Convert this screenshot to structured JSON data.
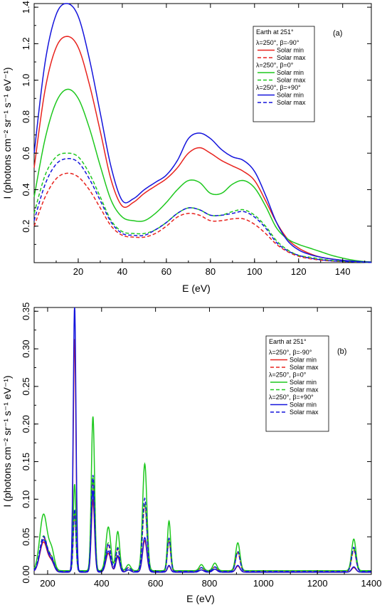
{
  "chart_data": [
    {
      "type": "line",
      "panel_label": "(a)",
      "title": "",
      "xlabel": "E (eV)",
      "ylabel": "I (photons cm⁻² sr⁻¹ s⁻¹ eV⁻¹)",
      "xlim": [
        0,
        153
      ],
      "ylim": [
        0,
        1.42
      ],
      "xticks": [
        20,
        40,
        60,
        80,
        100,
        120,
        140
      ],
      "yticks": [
        0.2,
        0.4,
        0.6,
        0.8,
        1.0,
        1.2,
        1.4
      ],
      "ytick_labels": [
        "0.2",
        "0.4",
        "0.6",
        "0.8",
        "1.0",
        "1.2",
        "1.4"
      ],
      "legend": {
        "position": "top-right",
        "header": "Earth at 251°",
        "groups": [
          "λ=250°, β=-90°",
          "λ=250°, β=0°",
          "λ=250°, β=+90°"
        ],
        "entries": [
          "Solar min",
          "Solar max"
        ]
      },
      "series": [
        {
          "name": "Solar min",
          "group": "λ=250°, β=-90°",
          "color": "#e8231e",
          "dash": "solid",
          "x": [
            0,
            5,
            10,
            15,
            20,
            25,
            30,
            35,
            40,
            45,
            50,
            55,
            60,
            65,
            70,
            75,
            80,
            85,
            90,
            95,
            100,
            105,
            110,
            115,
            120,
            125,
            130,
            135,
            140,
            145,
            150,
            153
          ],
          "y": [
            0.52,
            0.95,
            1.18,
            1.24,
            1.18,
            0.98,
            0.72,
            0.45,
            0.31,
            0.33,
            0.38,
            0.42,
            0.46,
            0.52,
            0.6,
            0.63,
            0.6,
            0.56,
            0.53,
            0.5,
            0.45,
            0.34,
            0.22,
            0.13,
            0.08,
            0.05,
            0.03,
            0.02,
            0.013,
            0.008,
            0.004,
            0.003
          ]
        },
        {
          "name": "Solar max",
          "group": "λ=250°, β=-90°",
          "color": "#e8231e",
          "dash": "dashed",
          "x": [
            0,
            5,
            10,
            15,
            20,
            25,
            30,
            35,
            40,
            45,
            50,
            55,
            60,
            65,
            70,
            75,
            80,
            85,
            90,
            95,
            100,
            105,
            110,
            115,
            120,
            125,
            130,
            135,
            140,
            145,
            150,
            153
          ],
          "y": [
            0.2,
            0.36,
            0.46,
            0.49,
            0.47,
            0.4,
            0.3,
            0.2,
            0.15,
            0.14,
            0.14,
            0.16,
            0.2,
            0.25,
            0.27,
            0.26,
            0.23,
            0.23,
            0.24,
            0.24,
            0.21,
            0.16,
            0.1,
            0.06,
            0.035,
            0.022,
            0.014,
            0.009,
            0.006,
            0.004,
            0.002,
            0.001
          ]
        },
        {
          "name": "Solar min",
          "group": "λ=250°, β=0°",
          "color": "#1ec81e",
          "dash": "solid",
          "x": [
            0,
            5,
            10,
            15,
            20,
            25,
            30,
            35,
            40,
            45,
            50,
            55,
            60,
            65,
            70,
            75,
            80,
            85,
            90,
            95,
            100,
            105,
            110,
            115,
            120,
            125,
            130,
            135,
            140,
            145,
            150,
            153
          ],
          "y": [
            0.36,
            0.68,
            0.88,
            0.95,
            0.9,
            0.74,
            0.53,
            0.34,
            0.25,
            0.23,
            0.23,
            0.27,
            0.33,
            0.4,
            0.45,
            0.44,
            0.38,
            0.38,
            0.43,
            0.45,
            0.41,
            0.31,
            0.19,
            0.13,
            0.1,
            0.08,
            0.06,
            0.04,
            0.025,
            0.013,
            0.006,
            0.004
          ]
        },
        {
          "name": "Solar max",
          "group": "λ=250°, β=0°",
          "color": "#1ec81e",
          "dash": "dashed",
          "x": [
            0,
            5,
            10,
            15,
            20,
            25,
            30,
            35,
            40,
            45,
            50,
            55,
            60,
            65,
            70,
            75,
            80,
            85,
            90,
            95,
            100,
            105,
            110,
            115,
            120,
            125,
            130,
            135,
            140,
            145,
            150,
            153
          ],
          "y": [
            0.27,
            0.48,
            0.58,
            0.6,
            0.58,
            0.49,
            0.36,
            0.23,
            0.17,
            0.16,
            0.16,
            0.18,
            0.22,
            0.27,
            0.3,
            0.29,
            0.26,
            0.26,
            0.28,
            0.29,
            0.26,
            0.2,
            0.12,
            0.07,
            0.04,
            0.03,
            0.02,
            0.012,
            0.008,
            0.005,
            0.002,
            0.001
          ]
        },
        {
          "name": "Solar min",
          "group": "λ=250°, β=+90°",
          "color": "#1414dc",
          "dash": "solid",
          "x": [
            0,
            5,
            10,
            15,
            20,
            25,
            30,
            35,
            40,
            45,
            50,
            55,
            60,
            65,
            70,
            75,
            80,
            85,
            90,
            95,
            100,
            105,
            110,
            115,
            120,
            125,
            130,
            135,
            140,
            145,
            150,
            153
          ],
          "y": [
            0.6,
            1.1,
            1.36,
            1.42,
            1.35,
            1.12,
            0.82,
            0.52,
            0.34,
            0.35,
            0.4,
            0.44,
            0.48,
            0.56,
            0.68,
            0.71,
            0.68,
            0.62,
            0.58,
            0.56,
            0.5,
            0.37,
            0.22,
            0.12,
            0.07,
            0.045,
            0.03,
            0.02,
            0.013,
            0.008,
            0.004,
            0.003
          ]
        },
        {
          "name": "Solar max",
          "group": "λ=250°, β=+90°",
          "color": "#1414dc",
          "dash": "dashed",
          "x": [
            0,
            5,
            10,
            15,
            20,
            25,
            30,
            35,
            40,
            45,
            50,
            55,
            60,
            65,
            70,
            75,
            80,
            85,
            90,
            95,
            100,
            105,
            110,
            115,
            120,
            125,
            130,
            135,
            140,
            145,
            150,
            153
          ],
          "y": [
            0.23,
            0.43,
            0.54,
            0.57,
            0.55,
            0.46,
            0.34,
            0.22,
            0.16,
            0.15,
            0.15,
            0.18,
            0.22,
            0.27,
            0.3,
            0.29,
            0.26,
            0.26,
            0.27,
            0.28,
            0.25,
            0.19,
            0.11,
            0.065,
            0.04,
            0.025,
            0.016,
            0.01,
            0.007,
            0.004,
            0.002,
            0.001
          ]
        }
      ]
    },
    {
      "type": "line",
      "panel_label": "(b)",
      "title": "",
      "xlabel": "E (eV)",
      "ylabel": "I (photons cm⁻² sr⁻¹ s⁻¹ eV⁻¹)",
      "xlim": [
        150,
        1400
      ],
      "ylim": [
        0,
        0.355
      ],
      "xticks": [
        200,
        400,
        600,
        800,
        1000,
        1200,
        1400
      ],
      "yticks": [
        0,
        0.05,
        0.1,
        0.15,
        0.2,
        0.25,
        0.3,
        0.35
      ],
      "ytick_labels": [
        "0.00",
        "0.05",
        "0.10",
        "0.15",
        "0.20",
        "0.25",
        "0.30",
        "0.35"
      ],
      "legend": {
        "position": "top-right",
        "header": "Earth at 251°",
        "groups": [
          "λ=250°, β=-90°",
          "λ=250°, β=0°",
          "λ=250°, β=+90°"
        ],
        "entries": [
          "Solar min",
          "Solar max"
        ]
      },
      "peaks_x": [
        185,
        215,
        300,
        368,
        425,
        460,
        500,
        560,
        650,
        770,
        820,
        905,
        1335
      ],
      "peak_width": [
        14,
        10,
        5,
        6,
        9,
        7,
        8,
        8,
        6,
        8,
        8,
        8,
        8
      ],
      "series": [
        {
          "name": "Solar min",
          "group": "λ=250°, β=-90°",
          "color": "#e8231e",
          "dash": "solid",
          "baseline": 0.003,
          "peaks": [
            0.04,
            0.012,
            0.31,
            0.095,
            0.025,
            0.02,
            0.003,
            0.042,
            0.008,
            0.003,
            0.004,
            0.008,
            0.006
          ]
        },
        {
          "name": "Solar max",
          "group": "λ=250°, β=-90°",
          "color": "#e8231e",
          "dash": "dashed",
          "baseline": 0.004,
          "peaks": [
            0.045,
            0.015,
            0.075,
            0.12,
            0.035,
            0.03,
            0.005,
            0.088,
            0.04,
            0.005,
            0.006,
            0.025,
            0.028
          ]
        },
        {
          "name": "Solar min",
          "group": "λ=250°, β=0°",
          "color": "#1ec81e",
          "dash": "solid",
          "baseline": 0.005,
          "peaks": [
            0.075,
            0.025,
            0.115,
            0.205,
            0.058,
            0.052,
            0.008,
            0.142,
            0.066,
            0.008,
            0.01,
            0.037,
            0.042
          ]
        },
        {
          "name": "Solar max",
          "group": "λ=250°, β=0°",
          "color": "#1ec81e",
          "dash": "dashed",
          "baseline": 0.004,
          "peaks": [
            0.047,
            0.016,
            0.08,
            0.125,
            0.038,
            0.032,
            0.005,
            0.09,
            0.042,
            0.005,
            0.006,
            0.027,
            0.03
          ]
        },
        {
          "name": "Solar min",
          "group": "λ=250°, β=+90°",
          "color": "#1414dc",
          "dash": "solid",
          "baseline": 0.003,
          "peaks": [
            0.043,
            0.013,
            0.355,
            0.108,
            0.028,
            0.022,
            0.003,
            0.046,
            0.009,
            0.003,
            0.004,
            0.009,
            0.007
          ]
        },
        {
          "name": "Solar max",
          "group": "λ=250°, β=+90°",
          "color": "#1414dc",
          "dash": "dashed",
          "baseline": 0.004,
          "peaks": [
            0.046,
            0.015,
            0.083,
            0.128,
            0.037,
            0.031,
            0.005,
            0.097,
            0.044,
            0.005,
            0.006,
            0.026,
            0.032
          ]
        }
      ]
    }
  ]
}
